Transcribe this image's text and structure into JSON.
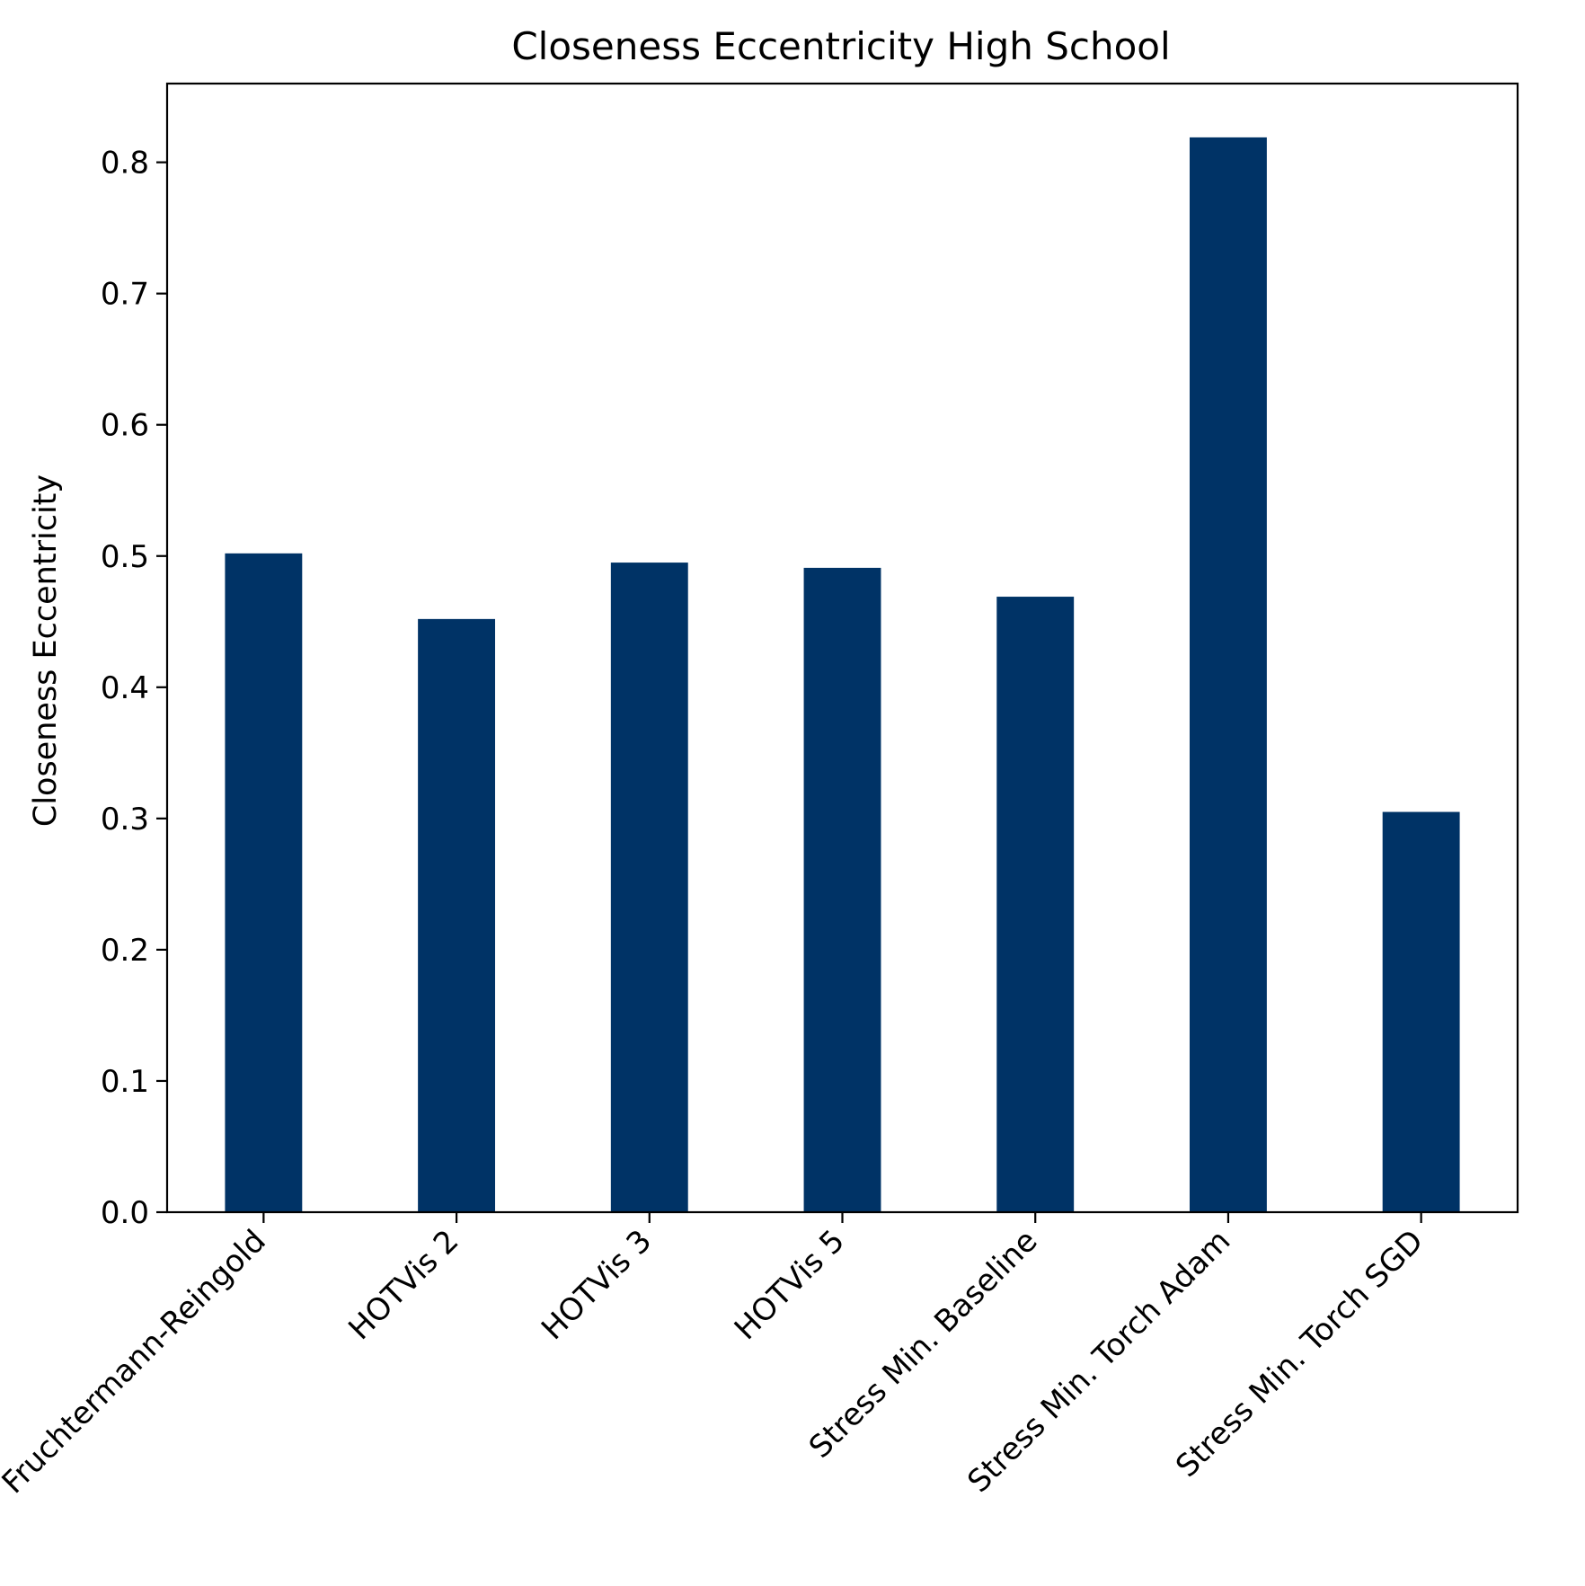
{
  "chart_data": {
    "type": "bar",
    "title": "Closeness Eccentricity High School",
    "xlabel": "",
    "ylabel": "Closeness Eccentricity",
    "categories": [
      "Fruchtermann-Reingold",
      "HOTVis 2",
      "HOTVis 3",
      "HOTVis 5",
      "Stress Min. Baseline",
      "Stress Min. Torch Adam",
      "Stress Min. Torch SGD"
    ],
    "values": [
      0.502,
      0.452,
      0.495,
      0.491,
      0.469,
      0.819,
      0.305
    ],
    "ylim": [
      0,
      0.86
    ],
    "yticks": [
      "0.0",
      "0.1",
      "0.2",
      "0.3",
      "0.4",
      "0.5",
      "0.6",
      "0.7",
      "0.8"
    ],
    "bar_color": "#003366",
    "grid": false,
    "legend": false
  }
}
